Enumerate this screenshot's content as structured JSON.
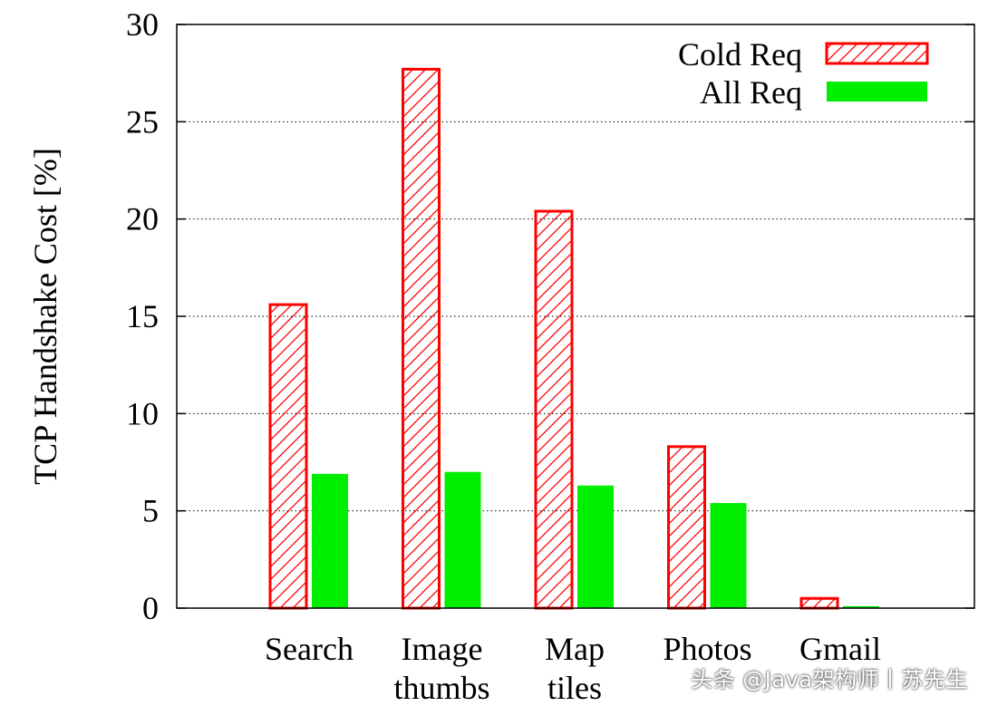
{
  "chart_data": {
    "type": "bar",
    "title": "",
    "xlabel": "",
    "ylabel": "TCP Handshake Cost [%]",
    "ylim": [
      0,
      30
    ],
    "yticks": [
      0,
      5,
      10,
      15,
      20,
      25,
      30
    ],
    "grid": "horizontal dotted",
    "legend_position": "top-right",
    "categories": [
      [
        "Search"
      ],
      [
        "Image",
        "thumbs"
      ],
      [
        "Map",
        "tiles"
      ],
      [
        "Photos"
      ],
      [
        "Gmail"
      ]
    ],
    "series": [
      {
        "name": "Cold Req",
        "values": [
          15.6,
          27.7,
          20.4,
          8.3,
          0.5
        ],
        "color": "#ff0000",
        "style": "hatched"
      },
      {
        "name": "All Req",
        "values": [
          6.9,
          7.0,
          6.3,
          5.4,
          0.1
        ],
        "color": "#00ee00",
        "style": "solid"
      }
    ]
  },
  "watermark": "头条 @Java架构师丨苏先生"
}
